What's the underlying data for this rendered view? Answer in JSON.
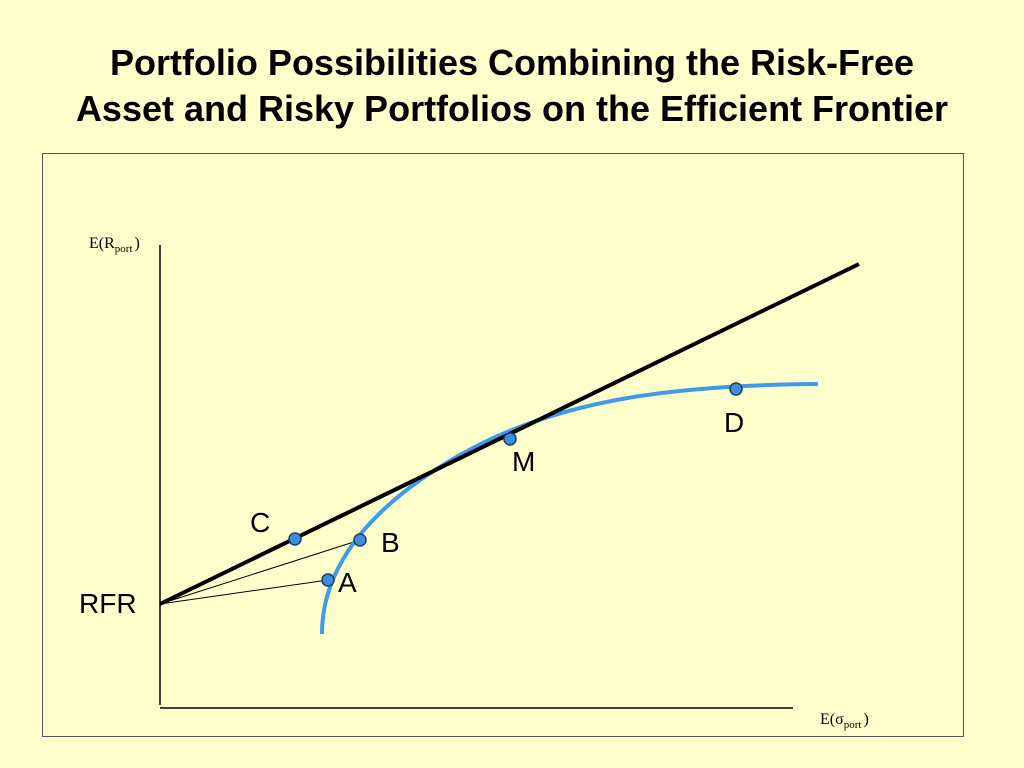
{
  "title": {
    "line1": "Portfolio Possibilities Combining the Risk-Free",
    "line2": "Asset and Risky Portfolios on the Efficient Frontier"
  },
  "axes": {
    "y_label_main": "E(R",
    "y_label_sub": "port",
    "y_label_close": ")",
    "x_label_main": "E(",
    "x_label_sigma": "σ",
    "x_label_sub": "port",
    "x_label_close": ")"
  },
  "labels": {
    "rfr": "RFR",
    "a": "A",
    "b": "B",
    "c": "C",
    "m": "M",
    "d": "D"
  },
  "colors": {
    "background": "#ffffcc",
    "frontier": "#3d9be9",
    "point_fill": "#3d8ee0",
    "line": "#000000"
  }
}
